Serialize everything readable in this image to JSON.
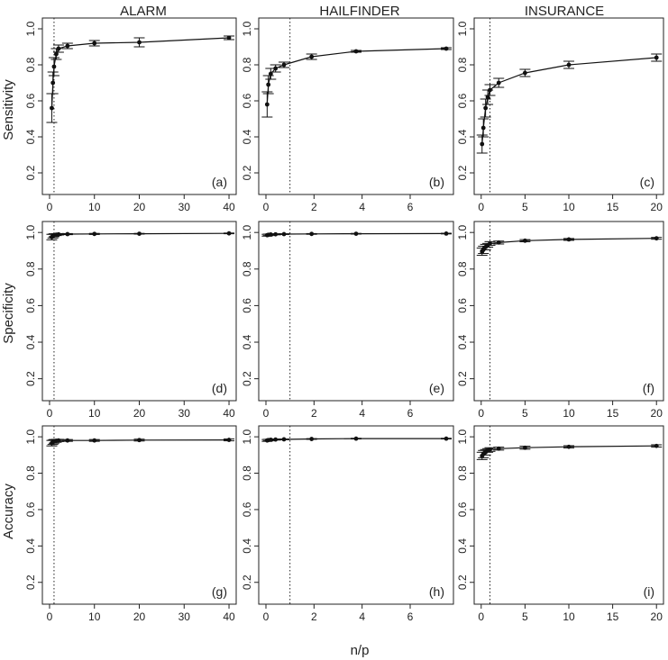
{
  "figure": {
    "xlabel": "n/p",
    "columns": [
      "ALARM",
      "HAILFINDER",
      "INSURANCE"
    ],
    "rows": [
      "Sensitivity",
      "Specificity",
      "Accuracy"
    ]
  },
  "chart_data": [
    {
      "type": "line",
      "panel": "(a)",
      "column": "ALARM",
      "ylabel": "Sensitivity",
      "xlim": [
        0,
        40
      ],
      "ylim": [
        0.2,
        1.0
      ],
      "xticks": [
        0,
        10,
        20,
        30,
        40
      ],
      "yticks": [
        0.2,
        0.4,
        0.6,
        0.8,
        1.0
      ],
      "vline": 1,
      "x": [
        0.5,
        0.75,
        1,
        1.5,
        2,
        4,
        10,
        20,
        40
      ],
      "y": [
        0.56,
        0.7,
        0.79,
        0.86,
        0.89,
        0.905,
        0.92,
        0.925,
        0.95
      ],
      "err": [
        0.08,
        0.06,
        0.05,
        0.03,
        0.02,
        0.015,
        0.015,
        0.025,
        0.01
      ]
    },
    {
      "type": "line",
      "panel": "(b)",
      "column": "HAILFINDER",
      "ylabel": "Sensitivity",
      "xlim": [
        0,
        7.5
      ],
      "ylim": [
        0.2,
        1.0
      ],
      "xticks": [
        0,
        2,
        4,
        6
      ],
      "yticks": [
        0.2,
        0.4,
        0.6,
        0.8,
        1.0
      ],
      "vline": 1,
      "x": [
        0.05,
        0.1,
        0.2,
        0.4,
        0.75,
        1.9,
        3.75,
        7.5
      ],
      "y": [
        0.58,
        0.69,
        0.75,
        0.78,
        0.8,
        0.845,
        0.875,
        0.89
      ],
      "err": [
        0.07,
        0.05,
        0.03,
        0.02,
        0.015,
        0.015,
        0.005,
        0.005
      ]
    },
    {
      "type": "line",
      "panel": "(c)",
      "column": "INSURANCE",
      "ylabel": "Sensitivity",
      "xlim": [
        0,
        20
      ],
      "ylim": [
        0.2,
        1.0
      ],
      "xticks": [
        0,
        5,
        10,
        15,
        20
      ],
      "yticks": [
        0.2,
        0.4,
        0.6,
        0.8,
        1.0
      ],
      "vline": 1,
      "x": [
        0.1,
        0.25,
        0.5,
        0.75,
        1,
        2,
        5,
        10,
        20
      ],
      "y": [
        0.36,
        0.45,
        0.56,
        0.62,
        0.66,
        0.7,
        0.755,
        0.8,
        0.84
      ],
      "err": [
        0.05,
        0.05,
        0.05,
        0.04,
        0.03,
        0.025,
        0.02,
        0.02,
        0.02
      ]
    },
    {
      "type": "line",
      "panel": "(d)",
      "column": "ALARM",
      "ylabel": "Specificity",
      "xlim": [
        0,
        40
      ],
      "ylim": [
        0.2,
        1.0
      ],
      "xticks": [
        0,
        10,
        20,
        30,
        40
      ],
      "yticks": [
        0.2,
        0.4,
        0.6,
        0.8,
        1.0
      ],
      "vline": 1,
      "x": [
        0.5,
        0.75,
        1,
        1.5,
        2,
        4,
        10,
        20,
        40
      ],
      "y": [
        0.975,
        0.98,
        0.985,
        0.988,
        0.99,
        0.991,
        0.992,
        0.993,
        0.995
      ],
      "err": [
        0.015,
        0.01,
        0.008,
        0.005,
        0.004,
        0.003,
        0.003,
        0.002,
        0.002
      ]
    },
    {
      "type": "line",
      "panel": "(e)",
      "column": "HAILFINDER",
      "ylabel": "Specificity",
      "xlim": [
        0,
        7.5
      ],
      "ylim": [
        0.2,
        1.0
      ],
      "xticks": [
        0,
        2,
        4,
        6
      ],
      "yticks": [
        0.2,
        0.4,
        0.6,
        0.8,
        1.0
      ],
      "vline": 1,
      "x": [
        0.05,
        0.1,
        0.2,
        0.4,
        0.75,
        1.9,
        3.75,
        7.5
      ],
      "y": [
        0.985,
        0.987,
        0.989,
        0.99,
        0.991,
        0.992,
        0.993,
        0.994
      ],
      "err": [
        0.005,
        0.004,
        0.003,
        0.003,
        0.002,
        0.002,
        0.002,
        0.002
      ]
    },
    {
      "type": "line",
      "panel": "(f)",
      "column": "INSURANCE",
      "ylabel": "Specificity",
      "xlim": [
        0,
        20
      ],
      "ylim": [
        0.2,
        1.0
      ],
      "xticks": [
        0,
        5,
        10,
        15,
        20
      ],
      "yticks": [
        0.2,
        0.4,
        0.6,
        0.8,
        1.0
      ],
      "vline": 1,
      "x": [
        0.1,
        0.25,
        0.5,
        0.75,
        1,
        2,
        5,
        10,
        20
      ],
      "y": [
        0.895,
        0.905,
        0.92,
        0.93,
        0.94,
        0.945,
        0.955,
        0.962,
        0.968
      ],
      "err": [
        0.02,
        0.02,
        0.015,
        0.01,
        0.01,
        0.008,
        0.006,
        0.005,
        0.005
      ]
    },
    {
      "type": "line",
      "panel": "(g)",
      "column": "ALARM",
      "ylabel": "Accuracy",
      "xlim": [
        0,
        40
      ],
      "ylim": [
        0.2,
        1.0
      ],
      "xticks": [
        0,
        10,
        20,
        30,
        40
      ],
      "yticks": [
        0.2,
        0.4,
        0.6,
        0.8,
        1.0
      ],
      "vline": 1,
      "x": [
        0.5,
        0.75,
        1,
        1.5,
        2,
        4,
        10,
        20,
        40
      ],
      "y": [
        0.965,
        0.97,
        0.975,
        0.978,
        0.98,
        0.98,
        0.98,
        0.982,
        0.983
      ],
      "err": [
        0.015,
        0.012,
        0.01,
        0.008,
        0.006,
        0.005,
        0.005,
        0.005,
        0.005
      ]
    },
    {
      "type": "line",
      "panel": "(h)",
      "column": "HAILFINDER",
      "ylabel": "Accuracy",
      "xlim": [
        0,
        7.5
      ],
      "ylim": [
        0.2,
        1.0
      ],
      "xticks": [
        0,
        2,
        4,
        6
      ],
      "yticks": [
        0.2,
        0.4,
        0.6,
        0.8,
        1.0
      ],
      "vline": 1,
      "x": [
        0.05,
        0.1,
        0.2,
        0.4,
        0.75,
        1.9,
        3.75,
        7.5
      ],
      "y": [
        0.98,
        0.982,
        0.984,
        0.985,
        0.986,
        0.988,
        0.99,
        0.99
      ],
      "err": [
        0.005,
        0.004,
        0.003,
        0.003,
        0.002,
        0.002,
        0.002,
        0.002
      ]
    },
    {
      "type": "line",
      "panel": "(i)",
      "column": "INSURANCE",
      "ylabel": "Accuracy",
      "xlim": [
        0,
        20
      ],
      "ylim": [
        0.2,
        1.0
      ],
      "xticks": [
        0,
        5,
        10,
        15,
        20
      ],
      "yticks": [
        0.2,
        0.4,
        0.6,
        0.8,
        1.0
      ],
      "vline": 1,
      "x": [
        0.1,
        0.25,
        0.5,
        0.75,
        1,
        2,
        5,
        10,
        20
      ],
      "y": [
        0.895,
        0.905,
        0.915,
        0.925,
        0.93,
        0.935,
        0.94,
        0.945,
        0.95
      ],
      "err": [
        0.02,
        0.02,
        0.015,
        0.01,
        0.01,
        0.008,
        0.008,
        0.006,
        0.006
      ]
    }
  ]
}
